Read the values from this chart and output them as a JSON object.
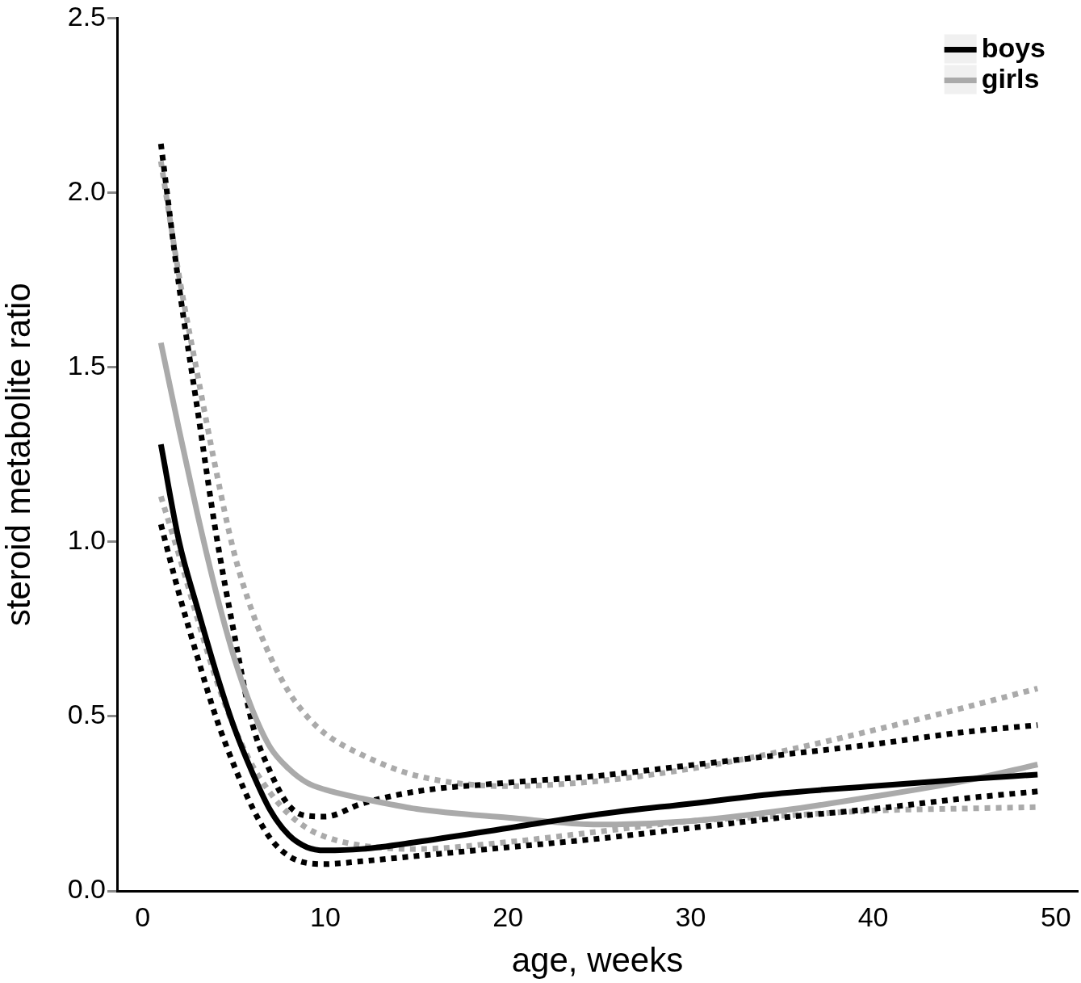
{
  "chart_data": {
    "type": "line",
    "xlabel": "age, weeks",
    "ylabel": "steroid metabolite ratio",
    "x": [
      1,
      2,
      3,
      4,
      5,
      6,
      7,
      8,
      9,
      10,
      12,
      15,
      20,
      25,
      30,
      35,
      40,
      45,
      49
    ],
    "series": [
      {
        "name": "boys",
        "color": "#000000",
        "line_style": "solid",
        "values": [
          1.279,
          1.0,
          0.81,
          0.63,
          0.47,
          0.34,
          0.23,
          0.16,
          0.125,
          0.116,
          0.12,
          0.14,
          0.18,
          0.22,
          0.25,
          0.28,
          0.3,
          0.32,
          0.333
        ]
      },
      {
        "name": "girls",
        "color": "#aaaaaa",
        "line_style": "solid",
        "values": [
          1.57,
          1.32,
          1.08,
          0.86,
          0.67,
          0.52,
          0.41,
          0.35,
          0.31,
          0.29,
          0.265,
          0.235,
          0.21,
          0.19,
          0.2,
          0.23,
          0.27,
          0.315,
          0.362
        ]
      },
      {
        "color": "#000000",
        "line_style": "dotted",
        "values": [
          2.14,
          1.73,
          1.38,
          1.03,
          0.74,
          0.48,
          0.34,
          0.245,
          0.215,
          0.213,
          0.25,
          0.285,
          0.31,
          0.33,
          0.36,
          0.39,
          0.42,
          0.455,
          0.475
        ]
      },
      {
        "color": "#000000",
        "line_style": "dotted",
        "values": [
          1.05,
          0.85,
          0.67,
          0.5,
          0.36,
          0.24,
          0.15,
          0.1,
          0.08,
          0.077,
          0.085,
          0.1,
          0.125,
          0.15,
          0.18,
          0.21,
          0.235,
          0.265,
          0.285
        ]
      },
      {
        "color": "#aaaaaa",
        "line_style": "dotted",
        "values": [
          2.09,
          1.76,
          1.48,
          1.21,
          0.97,
          0.8,
          0.67,
          0.57,
          0.5,
          0.45,
          0.39,
          0.33,
          0.3,
          0.315,
          0.35,
          0.4,
          0.46,
          0.525,
          0.58
        ]
      },
      {
        "color": "#aaaaaa",
        "line_style": "dotted",
        "values": [
          1.13,
          0.96,
          0.78,
          0.61,
          0.47,
          0.36,
          0.28,
          0.22,
          0.18,
          0.155,
          0.13,
          0.12,
          0.14,
          0.17,
          0.2,
          0.215,
          0.23,
          0.236,
          0.24
        ]
      }
    ],
    "xlim": [
      -1.4,
      51.2
    ],
    "xticks": [
      0,
      10,
      20,
      30,
      40,
      50
    ],
    "ylim": [
      0,
      2.5
    ],
    "yticks": [
      {
        "value": 0,
        "label": "0.0"
      },
      {
        "value": 0.5,
        "label": "0.5"
      },
      {
        "value": 1,
        "label": "1.0"
      },
      {
        "value": 1.5,
        "label": "1.5"
      },
      {
        "value": 2,
        "label": "2.0"
      },
      {
        "value": 2.5,
        "label": "2.5"
      }
    ],
    "grid": false,
    "legend": "top right",
    "marker": "none"
  }
}
